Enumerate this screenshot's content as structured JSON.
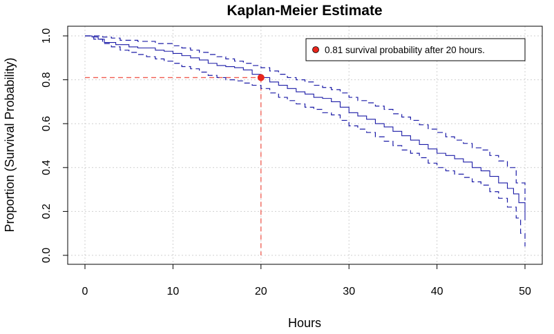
{
  "chart_data": {
    "type": "line",
    "title": "Kaplan-Meier Estimate",
    "xlabel": "Hours",
    "ylabel": "Proportion (Survival Probability)",
    "xlim": [
      0,
      50
    ],
    "ylim": [
      0,
      1.0
    ],
    "x_ticks": [
      0,
      10,
      20,
      30,
      40,
      50
    ],
    "y_ticks": [
      0.0,
      0.2,
      0.4,
      0.6,
      0.8,
      1.0
    ],
    "x_tick_labels": [
      "0",
      "10",
      "20",
      "30",
      "40",
      "50"
    ],
    "y_tick_labels": [
      "0.0",
      "0.2",
      "0.4",
      "0.6",
      "0.8",
      "1.0"
    ],
    "grid": true,
    "step": true,
    "legend_position": "top-right",
    "colors": {
      "estimate": "#1a1aa6",
      "confidence": "#1a1aa6",
      "reference": "#f05a4f",
      "marker": "#e8261c",
      "grid": "#cfcfcf"
    },
    "series": [
      {
        "style": "solid",
        "x": [
          0,
          0.8,
          1.5,
          2.2,
          3.5,
          5,
          6,
          8,
          9,
          10,
          11,
          12,
          13,
          14,
          15,
          16,
          17,
          18,
          19,
          20,
          21,
          22,
          23,
          24,
          25,
          26,
          27,
          28,
          29,
          30,
          31,
          32,
          33,
          34,
          35,
          36,
          37,
          38,
          39,
          40,
          41,
          42,
          43,
          44,
          45,
          46,
          47,
          48,
          48.7,
          49.3,
          50
        ],
        "y": [
          1.0,
          0.995,
          0.985,
          0.97,
          0.96,
          0.95,
          0.945,
          0.935,
          0.93,
          0.92,
          0.91,
          0.9,
          0.89,
          0.875,
          0.865,
          0.86,
          0.855,
          0.845,
          0.825,
          0.81,
          0.79,
          0.775,
          0.76,
          0.745,
          0.735,
          0.72,
          0.715,
          0.7,
          0.675,
          0.65,
          0.635,
          0.62,
          0.6,
          0.585,
          0.565,
          0.545,
          0.525,
          0.505,
          0.485,
          0.465,
          0.455,
          0.44,
          0.425,
          0.4,
          0.385,
          0.36,
          0.33,
          0.305,
          0.28,
          0.24,
          0.16
        ]
      },
      {
        "style": "dashed",
        "x": [
          0,
          1,
          2,
          3,
          4,
          6,
          8,
          10,
          11,
          12,
          13,
          14,
          15,
          16,
          17,
          18,
          19,
          20,
          21,
          22,
          23,
          24,
          25,
          26,
          27,
          28,
          29,
          30,
          31,
          32,
          33,
          34,
          35,
          36,
          37,
          38,
          39,
          40,
          41,
          42,
          43,
          44,
          45,
          46,
          47,
          48,
          49,
          50
        ],
        "y": [
          1.0,
          1.0,
          0.995,
          0.99,
          0.98,
          0.975,
          0.965,
          0.955,
          0.945,
          0.935,
          0.925,
          0.915,
          0.905,
          0.895,
          0.885,
          0.875,
          0.865,
          0.855,
          0.84,
          0.825,
          0.81,
          0.8,
          0.79,
          0.775,
          0.765,
          0.755,
          0.74,
          0.72,
          0.705,
          0.695,
          0.68,
          0.665,
          0.645,
          0.63,
          0.615,
          0.595,
          0.575,
          0.56,
          0.54,
          0.525,
          0.51,
          0.49,
          0.48,
          0.455,
          0.43,
          0.4,
          0.33,
          0.25
        ]
      },
      {
        "style": "dashed",
        "x": [
          0,
          1,
          2,
          3,
          4,
          5,
          6,
          7,
          8,
          9,
          10,
          11,
          12,
          13,
          14,
          15,
          16,
          17,
          18,
          19,
          20,
          21,
          22,
          23,
          24,
          25,
          26,
          27,
          28,
          29,
          30,
          31,
          32,
          33,
          34,
          35,
          36,
          37,
          38,
          39,
          40,
          41,
          42,
          43,
          44,
          45,
          46,
          47,
          48,
          49,
          49.5,
          50
        ],
        "y": [
          1.0,
          0.985,
          0.965,
          0.95,
          0.935,
          0.925,
          0.915,
          0.905,
          0.895,
          0.885,
          0.875,
          0.86,
          0.85,
          0.835,
          0.82,
          0.81,
          0.8,
          0.795,
          0.785,
          0.775,
          0.76,
          0.74,
          0.72,
          0.705,
          0.69,
          0.675,
          0.665,
          0.65,
          0.64,
          0.615,
          0.59,
          0.575,
          0.56,
          0.54,
          0.52,
          0.5,
          0.48,
          0.465,
          0.445,
          0.42,
          0.4,
          0.385,
          0.37,
          0.355,
          0.335,
          0.32,
          0.29,
          0.26,
          0.22,
          0.17,
          0.1,
          0.04
        ]
      }
    ],
    "reference_point": {
      "x": 20,
      "y": 0.81
    },
    "legend": {
      "text": "0.81 survival probability after 20 hours."
    }
  }
}
